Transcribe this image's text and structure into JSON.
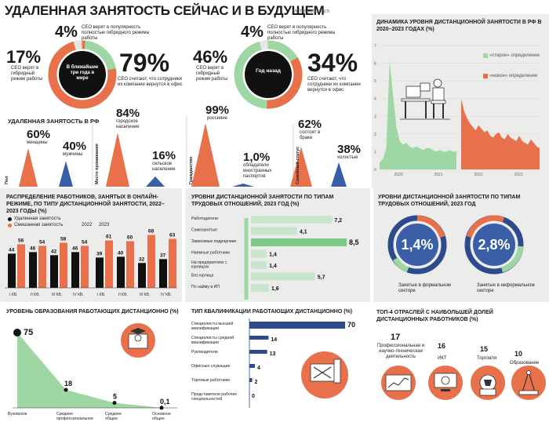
{
  "header": {
    "title": "УДАЛЕННАЯ ЗАНЯТОСТЬ СЕЙЧАС И В БУДУЩЕМ",
    "source": "ИСТОЧНИК: ВШЭ."
  },
  "donut_future": {
    "center": "В ближайшие три года в мире",
    "pct_top": "4%",
    "text_top": "CEO верят в популярность полностью гибридного режима работы",
    "pct_left": "17%",
    "text_left": "CEO верят в гибридный режим работы",
    "pct_right": "79%",
    "text_right": "CEO считают, что сотрудники их компании вернутся в офис"
  },
  "donut_past": {
    "center": "Год назад",
    "pct_top": "4%",
    "text_top": "CEO верят в популярность полностью гибридного режима работы",
    "pct_left": "46%",
    "text_left": "CEO верят в гибридный режим работы",
    "pct_right": "34%",
    "text_right": "CEO считают, что сотрудники их компании вернутся в офис"
  },
  "russia": {
    "title": "УДАЛЕННАЯ ЗАНЯТОСТЬ В РФ",
    "groups": [
      {
        "label": "Пол",
        "items": [
          {
            "value": "60%",
            "text": "женщины",
            "level": 60,
            "color": "#e8704a"
          },
          {
            "value": "40%",
            "text": "мужчины",
            "level": 40,
            "color": "#3b5fa6"
          }
        ]
      },
      {
        "label": "Место проживания",
        "items": [
          {
            "value": "84%",
            "text": "городское население",
            "level": 84,
            "color": "#e8704a"
          },
          {
            "value": "16%",
            "text": "сельское население",
            "level": 16,
            "color": "#3b5fa6"
          }
        ]
      },
      {
        "label": "Гражданство",
        "items": [
          {
            "value": "99%",
            "text": "россияне",
            "level": 99,
            "color": "#e8704a"
          },
          {
            "value": "1,0%",
            "text": "обладатели иностранных паспортов",
            "level": 1,
            "color": "#3b5fa6"
          }
        ]
      },
      {
        "label": "Семейный статус",
        "items": [
          {
            "value": "62%",
            "text": "состоят в браке",
            "level": 62,
            "color": "#e8704a"
          },
          {
            "value": "38%",
            "text": "холостые",
            "level": 38,
            "color": "#3b5fa6"
          }
        ]
      }
    ]
  },
  "chart_data": [
    {
      "type": "area",
      "title": "ДИНАМИКА УРОВНЯ ДИСТАНЦИОННОЙ ЗАНЯТОСТИ В РФ В 2020–2023 ГОДАХ (%)",
      "ylim": [
        0,
        7
      ],
      "y_ticks": [
        "7",
        "6",
        "5",
        "4",
        "3",
        "2",
        "1",
        "0"
      ],
      "x_labels": [
        "2020",
        "2021",
        "2022",
        "2023"
      ],
      "series": [
        {
          "name": "«старое» определение",
          "color": "#9ed6a4",
          "values": [
            0.4,
            0.6,
            1.2,
            6.1,
            4.3,
            2.4,
            1.6,
            1.4,
            1.5,
            1.3,
            1.2,
            1.3,
            1.2,
            1.1,
            1.2,
            1.2,
            1.1,
            1.0,
            1.1,
            1.0,
            1.0,
            1.1,
            1.0,
            1.0
          ]
        },
        {
          "name": "«новое» определение",
          "color": "#e8704a",
          "values": [
            4.0,
            3.3,
            2.9,
            2.6,
            2.4,
            2.2,
            2.5,
            2.3,
            2.1,
            2.2,
            1.9,
            1.8,
            2.0,
            2.1,
            1.8,
            1.7,
            2.0,
            1.8,
            1.7,
            1.6,
            1.9,
            1.6,
            1.5,
            1.4,
            1.7,
            1.5,
            1.3,
            1.2
          ]
        }
      ]
    },
    {
      "type": "bar",
      "title": "РАСПРЕДЕЛЕНИЕ РАБОТНИКОВ, ЗАНЯТЫХ В ОНЛАЙН-РЕЖИМЕ, ПО ТИПУ ДИСТАНЦИОННОЙ ЗАНЯТОСТИ, 2022–2023 ГОДЫ (%)",
      "years": [
        "2022",
        "2023"
      ],
      "categories": [
        "I КВ.",
        "II КВ.",
        "III КВ.",
        "IV КВ.",
        "I КВ.",
        "II КВ.",
        "III КВ.",
        "IV КВ."
      ],
      "series": [
        {
          "name": "Удаленная занятость",
          "color": "#111111",
          "values": [
            44,
            46,
            42,
            46,
            39,
            40,
            32,
            37
          ]
        },
        {
          "name": "Смешанная занятость",
          "color": "#e8704a",
          "values": [
            56,
            54,
            58,
            54,
            61,
            60,
            68,
            63
          ]
        }
      ],
      "ylim": [
        0,
        100
      ]
    },
    {
      "type": "bar",
      "title": "УРОВНИ ДИСТАНЦИОННОЙ ЗАНЯТОСТИ ПО ТИПАМ ТРУДОВЫХ ОТНОШЕНИЙ, 2023 ГОД (%)",
      "categories": [
        "Работодатели",
        "Самозанятые",
        "Зависимые подрядчики",
        "Наемные работники",
        "На предприятиях с юрлицом",
        "Без юрлица",
        "По найму в ИП"
      ],
      "values": [
        "7,2",
        "4,1",
        "8,5",
        "1,4",
        "1,4",
        "5,7",
        "1,6"
      ],
      "numeric": [
        7.2,
        4.1,
        8.5,
        1.4,
        1.4,
        5.7,
        1.6
      ],
      "xlim": [
        0,
        8.5
      ]
    },
    {
      "type": "pie",
      "title": "УРОВНИ ДИСТАНЦИОННОЙ ЗАНЯТОСТИ ПО ТИПАМ ТРУДОВЫХ ОТНОШЕНИЙ, 2023 ГОД",
      "slices": [
        {
          "label": "Занятые в формальном секторе",
          "value": "1,4%",
          "numeric": 1.4
        },
        {
          "label": "Занятые в неформальном секторе",
          "value": "2,8%",
          "numeric": 2.8
        }
      ]
    },
    {
      "type": "area",
      "title": "УРОВЕНЬ ОБРАЗОВАНИЯ РАБОТАЮЩИХ ДИСТАНЦИОННО (%)",
      "categories": [
        "Вузовское",
        "Среднее профессиональное",
        "Среднее общее",
        "Основное общее"
      ],
      "values": [
        "75",
        "18",
        "5",
        "0,1"
      ],
      "numeric": [
        75,
        18,
        5,
        0.1
      ]
    },
    {
      "type": "bar",
      "title": "ТИП КВАЛИФИКАЦИИ РАБОТАЮЩИХ ДИСТАНЦИОННО (%)",
      "categories": [
        "Специалисты высшей квалификации",
        "Специалисты средней квалификации",
        "Руководители",
        "Офисные служащие",
        "Торговые работники",
        "Представители рабочих специальностей"
      ],
      "values": [
        "70",
        "14",
        "13",
        "4",
        "2",
        "0"
      ],
      "numeric": [
        70,
        14,
        13,
        4,
        2,
        0
      ],
      "xlim": [
        0,
        70
      ]
    },
    {
      "type": "table",
      "title": "ТОП-4 ОТРАСЛЕЙ С НАИБОЛЬШЕЙ ДОЛЕЙ ДИСТАНЦИОННЫХ РАБОТНИКОВ (%)",
      "items": [
        {
          "value": "17",
          "label": "Профессиональная и научно-техническая деятельность"
        },
        {
          "value": "16",
          "label": "ИКТ"
        },
        {
          "value": "15",
          "label": "Торговля"
        },
        {
          "value": "10",
          "label": "Образование"
        }
      ]
    }
  ],
  "colors": {
    "orange": "#e8704a",
    "green": "#9ed6a4",
    "blue": "#3b5fa6",
    "navy": "#2c4a8c",
    "panel": "#ececea",
    "dark": "#111111"
  }
}
